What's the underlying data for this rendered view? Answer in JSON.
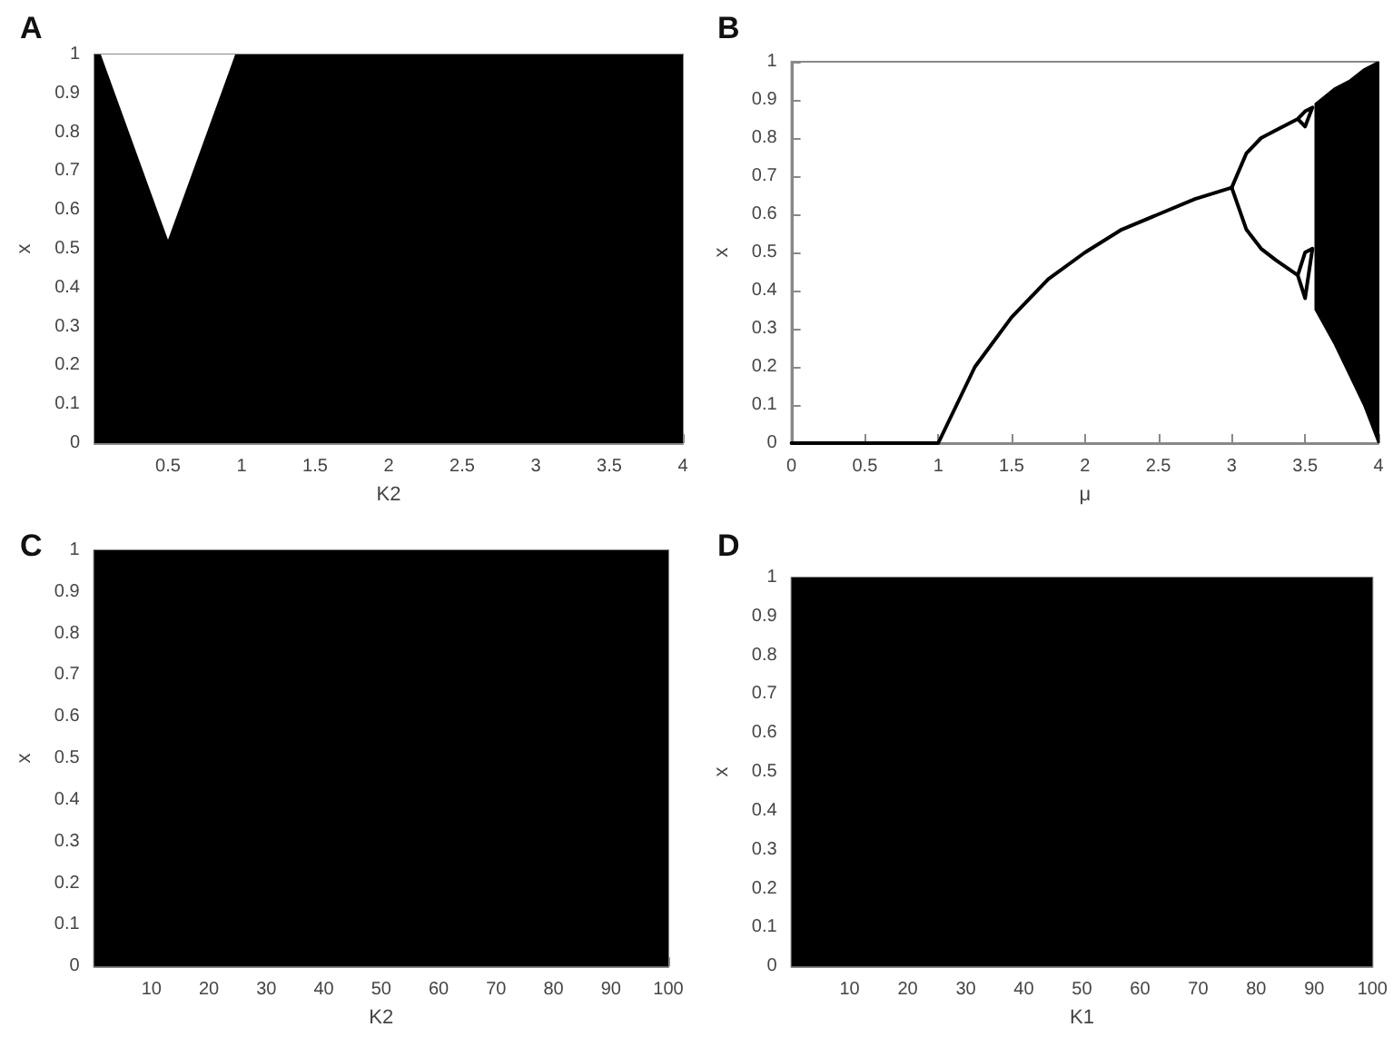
{
  "chart_data": [
    {
      "type": "area",
      "title": "A",
      "xlabel": "K2",
      "ylabel": "x",
      "xlim": [
        0,
        4
      ],
      "xticks": [
        0.5,
        1,
        1.5,
        2,
        2.5,
        3,
        3.5,
        4
      ],
      "ylim": [
        0,
        1
      ],
      "yticks": [
        0,
        0.1,
        0.2,
        0.3,
        0.4,
        0.5,
        0.6,
        0.7,
        0.8,
        0.9,
        1
      ],
      "bands": [
        {
          "axis": "y",
          "from": 0,
          "to": 1,
          "color": "#000000"
        }
      ],
      "series": [
        {
          "color": "#ffffff",
          "x": [
            0.05,
            0.5,
            0.95
          ],
          "lower": [
            1,
            0.53,
            1
          ],
          "upper": [
            1,
            1,
            1
          ],
          "values": [
            null,
            null,
            null
          ]
        }
      ]
    },
    {
      "type": "line",
      "title": "B",
      "xlabel": "μ",
      "ylabel": "x",
      "xlim": [
        0,
        4
      ],
      "xticks": [
        0,
        0.5,
        1,
        1.5,
        2,
        2.5,
        3,
        3.5,
        4
      ],
      "ylim": [
        0,
        1
      ],
      "yticks": [
        0,
        0.1,
        0.2,
        0.3,
        0.4,
        0.5,
        0.6,
        0.7,
        0.8,
        0.9,
        1
      ],
      "series": [
        {
          "color": "#000000",
          "x": [
            0,
            1,
            1.25,
            1.5,
            1.75,
            2,
            2.25,
            2.5,
            2.75,
            3
          ],
          "values": [
            0,
            0,
            0.2,
            0.33,
            0.43,
            0.5,
            0.56,
            0.6,
            0.64,
            0.67
          ]
        },
        {
          "color": "#000000",
          "x": [
            3,
            3.1,
            3.2,
            3.3,
            3.45,
            3.5,
            3.55,
            3.5,
            3.45
          ],
          "values": [
            0.67,
            0.76,
            0.8,
            0.82,
            0.85,
            0.87,
            0.88,
            0.83,
            0.85
          ]
        },
        {
          "color": "#000000",
          "x": [
            3,
            3.1,
            3.2,
            3.3,
            3.45,
            3.5,
            3.55,
            3.5,
            3.45
          ],
          "values": [
            0.67,
            0.56,
            0.51,
            0.48,
            0.44,
            0.5,
            0.51,
            0.38,
            0.44
          ]
        },
        {
          "type": "area",
          "color": "#000000",
          "x": [
            3.57,
            3.7,
            3.8,
            3.9,
            4
          ],
          "lower": [
            0.35,
            0.26,
            0.18,
            0.1,
            0
          ],
          "upper": [
            0.89,
            0.93,
            0.95,
            0.98,
            1
          ],
          "values": [
            null,
            null,
            null,
            null,
            null
          ]
        }
      ]
    },
    {
      "type": "area",
      "title": "C",
      "xlabel": "K2",
      "ylabel": "x",
      "xlim": [
        0,
        100
      ],
      "xticks": [
        10,
        20,
        30,
        40,
        50,
        60,
        70,
        80,
        90,
        100
      ],
      "ylim": [
        0,
        1
      ],
      "yticks": [
        0,
        0.1,
        0.2,
        0.3,
        0.4,
        0.5,
        0.6,
        0.7,
        0.8,
        0.9,
        1
      ],
      "bands": [
        {
          "axis": "y",
          "from": 0,
          "to": 1,
          "color": "#000000"
        }
      ]
    },
    {
      "type": "area",
      "title": "D",
      "xlabel": "K1",
      "ylabel": "x",
      "xlim": [
        0,
        100
      ],
      "xticks": [
        10,
        20,
        30,
        40,
        50,
        60,
        70,
        80,
        90,
        100
      ],
      "ylim": [
        0,
        1
      ],
      "yticks": [
        0,
        0.1,
        0.2,
        0.3,
        0.4,
        0.5,
        0.6,
        0.7,
        0.8,
        0.9,
        1
      ],
      "bands": [
        {
          "axis": "y",
          "from": 0,
          "to": 1,
          "color": "#000000"
        }
      ]
    }
  ]
}
